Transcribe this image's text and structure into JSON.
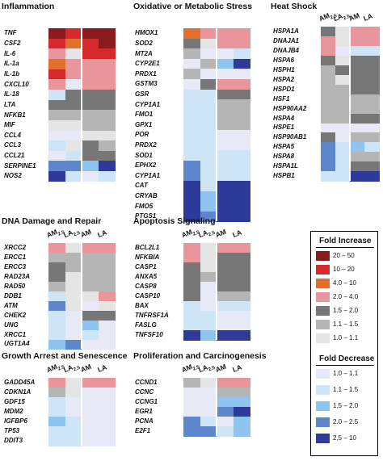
{
  "colors": {
    "inc_50": "#8b1a1f",
    "inc_20": "#d42a2e",
    "inc_10": "#e0702b",
    "inc_4": "#e8969b",
    "inc_2": "#777777",
    "inc_15": "#b5b5b5",
    "inc_11": "#e5e5e5",
    "dec_11": "#e7eaf6",
    "dec_15": "#cde5f7",
    "dec_20": "#8ec4ef",
    "dec_25": "#5d86cc",
    "dec_10": "#2d3a9a"
  },
  "columns": {
    "am": "AM",
    "la": "LA",
    "sub": "2.5"
  },
  "panels": [
    {
      "id": "inflammation",
      "title": "Inflammation",
      "headers": "none",
      "genes": [
        "TNF",
        "CSF2",
        "IL-6",
        "IL-1a",
        "IL-1b",
        "CXCL10",
        "IL-18",
        "LTA",
        "NFKB1",
        "MIF",
        "CCL4",
        "CCL3",
        "CCL21",
        "SERPINE1",
        "NOS2"
      ],
      "cells": [
        [
          "inc_50",
          "inc_20",
          "inc_50",
          "inc_50"
        ],
        [
          "inc_20",
          "inc_10",
          "inc_20",
          "inc_50"
        ],
        [
          "inc_4",
          "inc_11",
          "inc_20",
          "inc_20"
        ],
        [
          "inc_10",
          "inc_4",
          "inc_4",
          "inc_4"
        ],
        [
          "inc_20",
          "inc_4",
          "inc_4",
          "inc_4"
        ],
        [
          "inc_4",
          "dec_11",
          "inc_4",
          "inc_4"
        ],
        [
          "dec_15",
          "inc_2",
          "inc_2",
          "inc_2"
        ],
        [
          "inc_2",
          "inc_2",
          "inc_2",
          "inc_2"
        ],
        [
          "inc_15",
          "inc_15",
          "inc_15",
          "inc_15"
        ],
        [
          "inc_11",
          "inc_11",
          "inc_15",
          "inc_15"
        ],
        [
          "dec_11",
          "dec_11",
          "inc_11",
          "inc_11"
        ],
        [
          "dec_15",
          "inc_11",
          "inc_2",
          "inc_15"
        ],
        [
          "dec_11",
          "dec_15",
          "inc_2",
          "inc_2"
        ],
        [
          "dec_25",
          "dec_25",
          "dec_20",
          "dec_10"
        ],
        [
          "dec_10",
          "dec_15",
          "dec_11",
          "dec_15"
        ]
      ]
    },
    {
      "id": "oxidative",
      "title": "Oxidative or Metabolic Stress",
      "headers": "none",
      "genes": [
        "HMOX1",
        "SOD2",
        "MT2A",
        "CYP2E1",
        "PRDX1",
        "GSTM3",
        "GSR",
        "CYP1A1",
        "FMO1",
        "GPX1",
        "POR",
        "PRDX2",
        "SOD1",
        "EPHX2",
        "CYP1A1",
        "CAT",
        "CRYAB",
        "FMO5",
        "PTGS1"
      ],
      "cells": [
        [
          "inc_10",
          "inc_4",
          "inc_4",
          "inc_4"
        ],
        [
          "inc_2",
          "inc_11",
          "inc_4",
          "inc_4"
        ],
        [
          "inc_15",
          "dec_11",
          "dec_11",
          "dec_15"
        ],
        [
          "dec_11",
          "inc_15",
          "dec_20",
          "dec_10"
        ],
        [
          "inc_15",
          "dec_11",
          "dec_11",
          "dec_11"
        ],
        [
          "dec_11",
          "inc_2",
          "inc_4",
          "inc_4"
        ],
        [
          "dec_15",
          "dec_15",
          "inc_2",
          "inc_2"
        ],
        [
          "dec_15",
          "dec_15",
          "inc_15",
          "inc_15"
        ],
        [
          "dec_15",
          "dec_15",
          "inc_15",
          "inc_15"
        ],
        [
          "dec_15",
          "dec_15",
          "inc_15",
          "inc_15"
        ],
        [
          "dec_15",
          "dec_15",
          "dec_11",
          "dec_11"
        ],
        [
          "dec_15",
          "dec_15",
          "dec_11",
          "dec_11"
        ],
        [
          "dec_15",
          "dec_15",
          "dec_15",
          "dec_15"
        ],
        [
          "dec_25",
          "dec_15",
          "dec_15",
          "dec_15"
        ],
        [
          "dec_25",
          "dec_15",
          "dec_15",
          "dec_15"
        ],
        [
          "dec_10",
          "dec_15",
          "dec_10",
          "dec_10"
        ],
        [
          "dec_10",
          "dec_20",
          "dec_10",
          "dec_10"
        ],
        [
          "dec_10",
          "dec_20",
          "dec_10",
          "dec_10"
        ],
        [
          "dec_10",
          "dec_25",
          "dec_10",
          "dec_10"
        ]
      ]
    },
    {
      "id": "heatshock",
      "title": "Heat Shock",
      "headers": "sub",
      "genes": [
        "HSPA1A",
        "DNAJA1",
        "DNAJB4",
        "HSPA6",
        "HSPH1",
        "HSPA2",
        "HSPD1",
        "HSF1",
        "HSP90AA2",
        "HSPA4",
        "HSPE1",
        "HSP90AB1",
        "HSPA5",
        "HSPA8",
        "HSPA1L",
        "HSPB1"
      ],
      "cells": [
        [
          "inc_2",
          "inc_11",
          "inc_4",
          "inc_4"
        ],
        [
          "inc_4",
          "inc_11",
          "inc_4",
          "inc_4"
        ],
        [
          "inc_4",
          "dec_11",
          "dec_15",
          "dec_15"
        ],
        [
          "inc_2",
          "inc_11",
          "inc_2",
          "inc_2"
        ],
        [
          "inc_15",
          "inc_2",
          "inc_2",
          "inc_2"
        ],
        [
          "inc_15",
          "inc_11",
          "inc_2",
          "inc_2"
        ],
        [
          "inc_15",
          "inc_15",
          "inc_2",
          "inc_2"
        ],
        [
          "inc_15",
          "inc_15",
          "inc_15",
          "inc_15"
        ],
        [
          "inc_15",
          "inc_15",
          "inc_15",
          "inc_15"
        ],
        [
          "inc_15",
          "inc_15",
          "inc_2",
          "inc_2"
        ],
        [
          "dec_11",
          "dec_11",
          "dec_11",
          "dec_11"
        ],
        [
          "inc_2",
          "dec_11",
          "inc_15",
          "inc_15"
        ],
        [
          "dec_25",
          "dec_15",
          "dec_20",
          "dec_15"
        ],
        [
          "dec_25",
          "dec_15",
          "inc_15",
          "inc_15"
        ],
        [
          "dec_25",
          "dec_15",
          "inc_2",
          "inc_2"
        ],
        [
          "dec_15",
          "dec_15",
          "dec_10",
          "dec_10"
        ]
      ]
    },
    {
      "id": "dnadamage",
      "title": "DNA Damage and Repair",
      "headers": "sub",
      "genes": [
        "XRCC2",
        "ERCC1",
        "ERCC3",
        "RAD23A",
        "RAD50",
        "DDB1",
        "ATM",
        "CHEK2",
        "UNG",
        "XRCC1",
        "UGT1A4"
      ],
      "cells": [
        [
          "inc_4",
          "inc_11",
          "inc_4",
          "inc_4"
        ],
        [
          "inc_15",
          "inc_15",
          "inc_15",
          "inc_15"
        ],
        [
          "inc_2",
          "inc_15",
          "inc_15",
          "inc_15"
        ],
        [
          "inc_2",
          "inc_11",
          "inc_15",
          "inc_15"
        ],
        [
          "inc_15",
          "inc_11",
          "inc_15",
          "inc_15"
        ],
        [
          "dec_15",
          "inc_11",
          "inc_11",
          "inc_4"
        ],
        [
          "dec_25",
          "inc_11",
          "dec_11",
          "inc_11"
        ],
        [
          "dec_15",
          "dec_11",
          "inc_2",
          "inc_2"
        ],
        [
          "dec_15",
          "dec_11",
          "dec_20",
          "dec_11"
        ],
        [
          "dec_15",
          "dec_11",
          "dec_15",
          "dec_11"
        ],
        [
          "dec_20",
          "dec_25",
          "dec_11",
          "dec_11"
        ]
      ]
    },
    {
      "id": "apoptosis",
      "title": "Apoptosis Signaling",
      "headers": "sub",
      "genes": [
        "BCL2L1",
        "NFKBIA",
        "CASP1",
        "ANXA5",
        "CASP8",
        "CASP10",
        "BAX",
        "TNFRSF1A",
        "FASLG",
        "TNFSF10"
      ],
      "cells": [
        [
          "inc_4",
          "inc_11",
          "inc_4",
          "inc_4"
        ],
        [
          "inc_4",
          "inc_11",
          "inc_2",
          "inc_2"
        ],
        [
          "inc_2",
          "inc_11",
          "inc_2",
          "inc_2"
        ],
        [
          "inc_2",
          "inc_15",
          "inc_2",
          "inc_2"
        ],
        [
          "inc_2",
          "dec_11",
          "inc_2",
          "inc_2"
        ],
        [
          "inc_2",
          "dec_11",
          "inc_15",
          "inc_15"
        ],
        [
          "dec_15",
          "dec_11",
          "dec_15",
          "dec_15"
        ],
        [
          "dec_15",
          "dec_15",
          "dec_11",
          "dec_11"
        ],
        [
          "dec_15",
          "dec_15",
          "dec_11",
          "dec_11"
        ],
        [
          "dec_10",
          "dec_20",
          "dec_10",
          "dec_10"
        ]
      ]
    },
    {
      "id": "growth",
      "title": "Growth Arrest and Senescence",
      "headers": "sub",
      "genes": [
        "GADD45A",
        "CDKN1A",
        "GDF15",
        "MDM2",
        "IGFBP6",
        "TP53",
        "DDIT3"
      ],
      "cells": [
        [
          "inc_4",
          "inc_11",
          "inc_4",
          "inc_4"
        ],
        [
          "inc_15",
          "inc_11",
          "dec_11",
          "dec_11"
        ],
        [
          "dec_15",
          "dec_11",
          "dec_11",
          "dec_11"
        ],
        [
          "dec_15",
          "dec_11",
          "dec_11",
          "dec_11"
        ],
        [
          "dec_20",
          "dec_15",
          "dec_11",
          "dec_11"
        ],
        [
          "dec_15",
          "dec_15",
          "dec_11",
          "dec_11"
        ],
        [
          "dec_15",
          "dec_15",
          "dec_11",
          "dec_11"
        ]
      ]
    },
    {
      "id": "proliferation",
      "title": "Proliferation and Carcinogenesis",
      "headers": "sub",
      "genes": [
        "CCND1",
        "CCNC",
        "CCNG1",
        "EGR1",
        "PCNA",
        "E2F1"
      ],
      "cells": [
        [
          "inc_15",
          "inc_11",
          "inc_4",
          "inc_4"
        ],
        [
          "dec_11",
          "dec_11",
          "inc_15",
          "inc_15"
        ],
        [
          "dec_11",
          "dec_11",
          "dec_20",
          "dec_20"
        ],
        [
          "dec_11",
          "dec_11",
          "dec_25",
          "dec_10"
        ],
        [
          "dec_25",
          "dec_15",
          "dec_11",
          "dec_20"
        ],
        [
          "dec_25",
          "dec_25",
          "dec_15",
          "dec_20"
        ]
      ]
    }
  ],
  "legend": {
    "increase_title": "Fold Increase",
    "decrease_title": "Fold Decrease",
    "increase": [
      {
        "color": "inc_50",
        "label": "20 – 50"
      },
      {
        "color": "inc_20",
        "label": "10 – 20"
      },
      {
        "color": "inc_10",
        "label": "4.0 – 10"
      },
      {
        "color": "inc_4",
        "label": "2.0 – 4.0"
      },
      {
        "color": "inc_2",
        "label": "1.5 – 2.0"
      },
      {
        "color": "inc_15",
        "label": "1.1 – 1.5"
      },
      {
        "color": "inc_11",
        "label": "1.0 – 1.1"
      }
    ],
    "decrease": [
      {
        "color": "dec_11",
        "label": "1.0 – 1.1"
      },
      {
        "color": "dec_15",
        "label": "1.1 – 1.5"
      },
      {
        "color": "dec_20",
        "label": "1.5 – 2.0"
      },
      {
        "color": "dec_25",
        "label": "2.0 – 2.5"
      },
      {
        "color": "dec_10",
        "label": "2.5 – 10"
      }
    ]
  }
}
